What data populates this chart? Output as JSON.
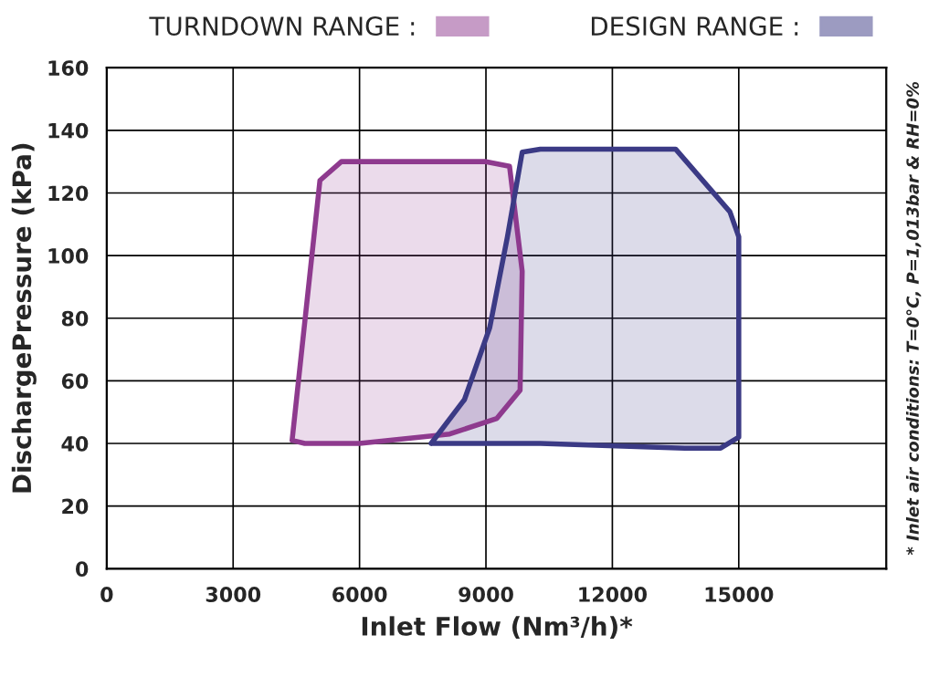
{
  "chart_data": {
    "type": "area",
    "xlabel": "Inlet Flow (Nm³/h)*",
    "ylabel": "DischargePressure (kPa)",
    "xlim": [
      0,
      18500
    ],
    "ylim": [
      0,
      160
    ],
    "xticks": [
      0,
      3000,
      6000,
      9000,
      12000,
      15000
    ],
    "yticks": [
      0,
      20,
      40,
      60,
      80,
      100,
      120,
      140,
      160
    ],
    "grid": true,
    "legend": "top",
    "series": [
      {
        "name": "TURNDOWN RANGE :",
        "color": "#8e3a8e",
        "x": [
          4400,
          5060,
          5570,
          9000,
          9560,
          9860,
          9810,
          9260,
          8140,
          6000,
          4700,
          4400
        ],
        "values": [
          41,
          124,
          130,
          130,
          128.5,
          95,
          57,
          48,
          43,
          40,
          40,
          41
        ]
      },
      {
        "name": "DESIGN RANGE :",
        "color": "#3b3a85",
        "x": [
          7700,
          8490,
          9090,
          9510,
          9860,
          10290,
          13500,
          14790,
          15000,
          15000,
          14570,
          13720,
          10290,
          7700
        ],
        "values": [
          40,
          54,
          77,
          106,
          133,
          134,
          134,
          114,
          106,
          42,
          38.5,
          38.5,
          40,
          40
        ]
      }
    ],
    "annotations": [
      "* Inlet air conditions: T=0°C, P=1,013bar & RH=0%"
    ]
  }
}
